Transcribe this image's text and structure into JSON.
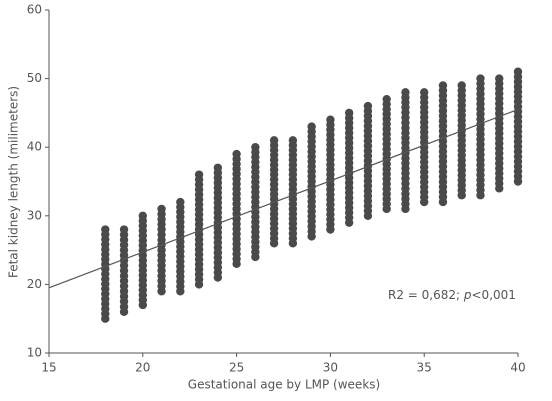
{
  "chart_data": {
    "type": "range_scatter",
    "x_label": "Gestational age by LMP (weeks)",
    "y_label": "Fetal kidney length (milimeters)",
    "annotation": {
      "prefix": "R2 = 0,682; ",
      "italic": "p",
      "suffix": "<0,001"
    },
    "x": [
      18,
      19,
      20,
      21,
      22,
      23,
      24,
      25,
      26,
      27,
      28,
      29,
      30,
      31,
      32,
      33,
      34,
      35,
      36,
      37,
      38,
      39,
      40
    ],
    "low": [
      15,
      16,
      17,
      19,
      19,
      20,
      21,
      23,
      24,
      26,
      26,
      27,
      28,
      29,
      30,
      31,
      31,
      32,
      32,
      33,
      33,
      34,
      35
    ],
    "high": [
      28,
      28,
      30,
      31,
      32,
      36,
      37,
      39,
      40,
      41,
      41,
      43,
      44,
      45,
      46,
      47,
      48,
      48,
      49,
      49,
      50,
      50,
      51
    ],
    "color": "#4a4a4a",
    "fit_line": {
      "x": [
        15,
        40
      ],
      "y": [
        19.5,
        45.5
      ],
      "color": "#555555"
    },
    "xlim": [
      15,
      40
    ],
    "xticks": [
      15,
      20,
      25,
      30,
      35,
      40
    ],
    "ylim": [
      10,
      60
    ],
    "yticks": [
      10,
      20,
      30,
      40,
      50,
      60
    ]
  }
}
